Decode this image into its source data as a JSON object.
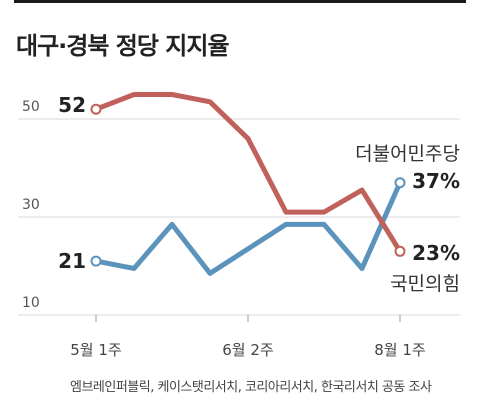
{
  "title": "대구·경북 정당 지지율",
  "source": "엠브레인퍼블릭, 케이스탯리서치, 코리아리서치, 한국리서치 공동 조사",
  "chart_data": {
    "type": "line",
    "ylim": [
      10,
      60
    ],
    "yticks": [
      10,
      30,
      50
    ],
    "x_tick_labels": [
      {
        "index": 0,
        "label": "5월 1주"
      },
      {
        "index": 4,
        "label": "6월 2주"
      },
      {
        "index": 8,
        "label": "8월 1주"
      }
    ],
    "grid": true,
    "series": [
      {
        "name": "더불어민주당",
        "color": "#5b93bd",
        "values": [
          21,
          19.5,
          28.5,
          18.5,
          23.5,
          28.5,
          28.5,
          19.5,
          37
        ],
        "start_label": "21",
        "end_label": "37%"
      },
      {
        "name": "국민의힘",
        "color": "#c0615c",
        "values": [
          52,
          55,
          55,
          53.5,
          46,
          31,
          31,
          35.5,
          23
        ],
        "start_label": "52",
        "end_label": "23%"
      }
    ]
  }
}
